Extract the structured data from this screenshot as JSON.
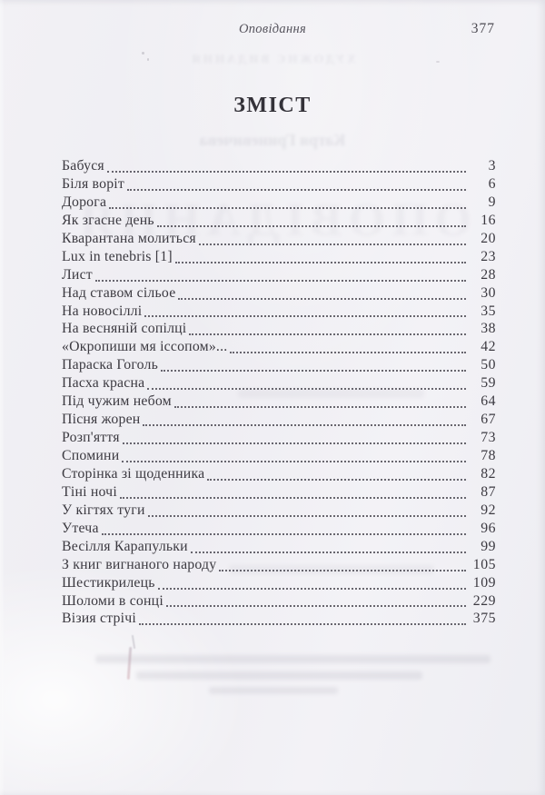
{
  "page": {
    "running_head": "Оповідання",
    "page_number": "377",
    "title": "ЗМІСТ"
  },
  "toc": {
    "entries": [
      {
        "title": "Бабуся",
        "page": "3"
      },
      {
        "title": "Біля воріт",
        "page": "6"
      },
      {
        "title": "Дорога",
        "page": "9"
      },
      {
        "title": "Як згасне день",
        "page": "16"
      },
      {
        "title": "Кварантана молиться",
        "page": "20"
      },
      {
        "title": "Lux in tenebris [1]",
        "page": "23"
      },
      {
        "title": "Лист",
        "page": "28"
      },
      {
        "title": "Над ставом сільое",
        "page": "30"
      },
      {
        "title": "На новосіллі",
        "page": "35"
      },
      {
        "title": "На весняній сопілці",
        "page": "38"
      },
      {
        "title": "«Окропиши мя іссопом»...",
        "page": "42"
      },
      {
        "title": "Параска Гоголь",
        "page": "50"
      },
      {
        "title": "Пасха красна",
        "page": "59"
      },
      {
        "title": "Під чужим небом",
        "page": "64"
      },
      {
        "title": "Пісня жорен",
        "page": "67"
      },
      {
        "title": "Розп'яття",
        "page": "73"
      },
      {
        "title": "Спомини",
        "page": "78"
      },
      {
        "title": "Сторінка зі щоденника",
        "page": "82"
      },
      {
        "title": "Тіні ночі",
        "page": "87"
      },
      {
        "title": "У кігтях туги",
        "page": "92"
      },
      {
        "title": "Утеча",
        "page": "96"
      },
      {
        "title": "Весілля Карапульки",
        "page": "99"
      },
      {
        "title": "З книг вигнаного народу",
        "page": "105"
      },
      {
        "title": "Шестикрилець",
        "page": "109"
      },
      {
        "title": "Шоломи в сонці",
        "page": "229"
      },
      {
        "title": "Візия стрічі",
        "page": "375"
      }
    ]
  },
  "ghost_showthrough": {
    "header_text": "ХУДОЖНЄ ВИДАННЯ",
    "author_text": "Катря Гриневичева",
    "big_title_text": "ОПОВІДАННЯ"
  }
}
